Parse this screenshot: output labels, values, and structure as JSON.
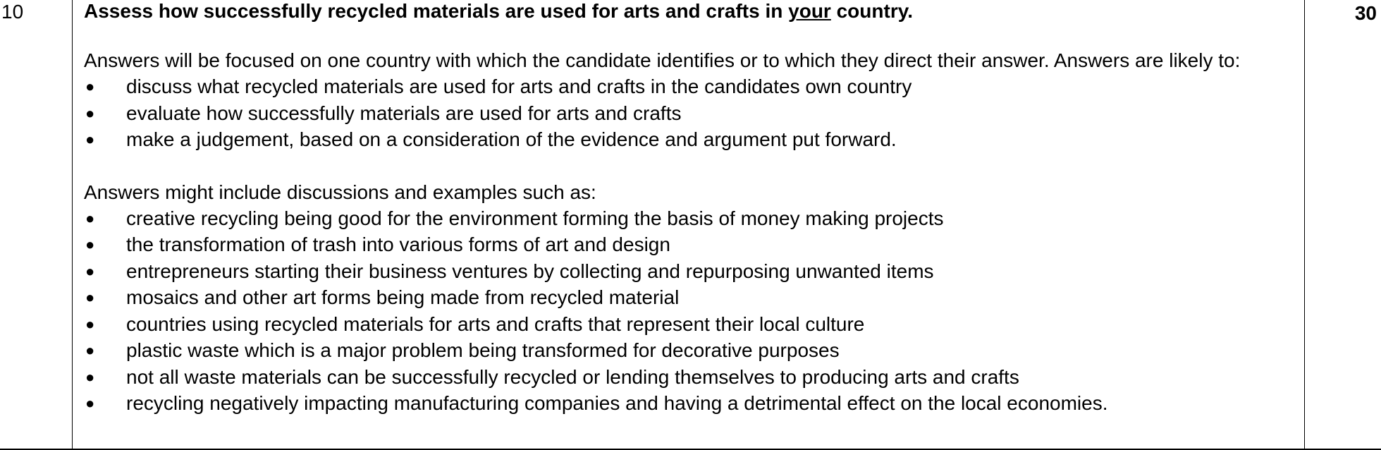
{
  "question": {
    "number": "10",
    "marks": "30",
    "prompt_before": "Assess how successfully recycled materials are used for arts and crafts in ",
    "prompt_emphasis": "your",
    "prompt_after": " country."
  },
  "guidance": {
    "intro": "Answers will be focused on one country with which the candidate identifies or to which they direct their answer. Answers are likely to:",
    "likely_points": [
      "discuss what recycled materials are used for arts and crafts in the candidates own country",
      "evaluate how successfully materials are used for arts and crafts",
      "make a judgement, based on a consideration of the evidence and argument put forward."
    ],
    "examples_intro": "Answers might include discussions and examples such as:",
    "examples": [
      "creative recycling being good for the environment forming the basis of money making projects",
      "the transformation of trash into various forms of art and design",
      "entrepreneurs starting their business ventures by collecting and repurposing unwanted items",
      "mosaics and other art forms being made from recycled material",
      "countries using recycled materials for arts and crafts that represent their local culture",
      "plastic waste which is a major problem being transformed for decorative purposes",
      "not all waste materials can be successfully recycled or lending themselves to producing arts and crafts",
      "recycling negatively impacting manufacturing companies and having a detrimental effect on the local economies."
    ]
  },
  "bullet_symbol": "●"
}
